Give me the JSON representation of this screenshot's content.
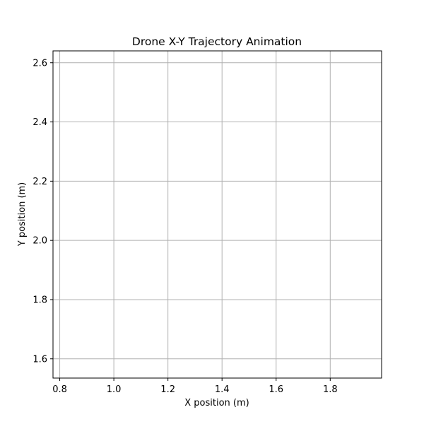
{
  "chart_data": {
    "type": "line",
    "title": "Drone X-Y Trajectory Animation",
    "xlabel": "X position (m)",
    "ylabel": "Y position (m)",
    "xlim": [
      0.775,
      1.99
    ],
    "ylim": [
      1.535,
      2.64
    ],
    "xticks": [
      0.8,
      1.0,
      1.2,
      1.4,
      1.6,
      1.8
    ],
    "xtick_labels": [
      "0.8",
      "1.0",
      "1.2",
      "1.4",
      "1.6",
      "1.8"
    ],
    "yticks": [
      1.6,
      1.8,
      2.0,
      2.2,
      2.4,
      2.6
    ],
    "ytick_labels": [
      "1.6",
      "1.8",
      "2.0",
      "2.2",
      "2.4",
      "2.6"
    ],
    "grid": true,
    "series": [],
    "colors": {
      "grid": "#b0b0b0",
      "axes": "#000000",
      "background": "#ffffff"
    }
  }
}
